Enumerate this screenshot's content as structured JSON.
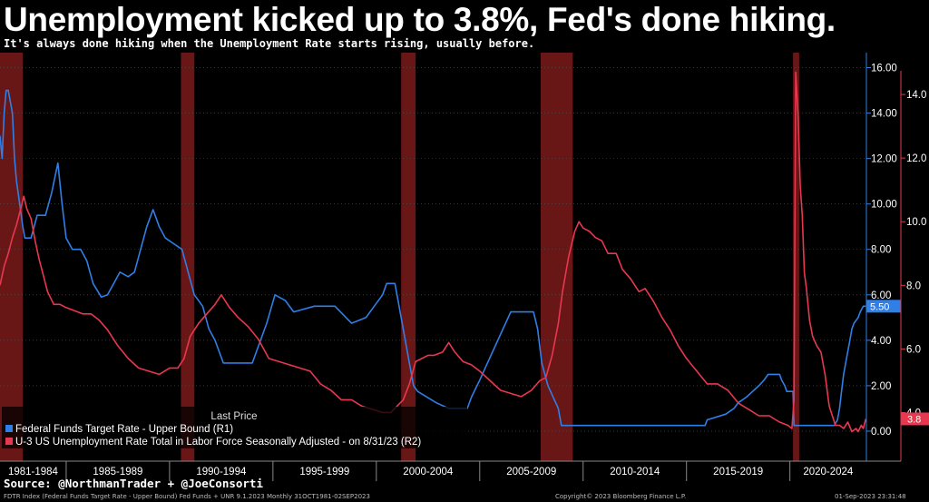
{
  "header": {
    "title": "Unemployment kicked up to 3.8%, Fed's done hiking.",
    "subtitle": "It's always done hiking when the Unemployment Rate starts rising, usually before."
  },
  "footer": {
    "source": "Source: @NorthmanTrader + @JoeConsorti",
    "index_line": "FDTR Index (Federal Funds Target Rate - Upper Bound) Fed Funds + UNR 9.1.2023  Monthly 31OCT1981-02SEP2023",
    "copyright": "Copyright© 2023 Bloomberg Finance L.P.",
    "timestamp": "01-Sep-2023 23:31:48"
  },
  "colors": {
    "fed_funds": "#2f7fe6",
    "unemployment": "#e8374f",
    "recession": "#7a1a1a",
    "background": "#000000"
  },
  "chart_data": {
    "type": "line",
    "x_range": [
      1981.8,
      2023.7
    ],
    "x_tick_labels": [
      "1981-1984",
      "1985-1989",
      "1990-1994",
      "1995-1999",
      "2000-2004",
      "2005-2009",
      "2010-2014",
      "2015-2019",
      "2020-2024"
    ],
    "y_right1": {
      "range": [
        -1.0,
        16.5
      ],
      "ticks": [
        "0.00",
        "2.00",
        "4.00",
        "6.00",
        "8.00",
        "10.00",
        "12.00",
        "14.00",
        "16.00"
      ],
      "last_value_label": "5.50"
    },
    "y_right2": {
      "range": [
        2.7,
        15.2
      ],
      "ticks": [
        "4.0",
        "6.0",
        "8.0",
        "10.0",
        "12.0",
        "14.0"
      ],
      "last_value_label": "3.8"
    },
    "recessions": [
      [
        1981.55,
        1982.9
      ],
      [
        1990.55,
        1991.2
      ],
      [
        2001.2,
        2001.9
      ],
      [
        2007.95,
        2009.5
      ],
      [
        2020.15,
        2020.45
      ]
    ],
    "legend": {
      "header": "Last Price",
      "entries": [
        {
          "label": "Federal Funds Target Rate - Upper Bound  (R1)",
          "series": "fed_funds"
        },
        {
          "label": "U-3 US Unemployment Rate Total in Labor Force Seasonally Adjusted -  on 8/31/23  (R2)",
          "series": "unemployment"
        }
      ]
    },
    "series": [
      {
        "key": "fed_funds",
        "axis": "R1",
        "points": [
          [
            1981.8,
            13.0
          ],
          [
            1981.9,
            12.0
          ],
          [
            1982.0,
            14.0
          ],
          [
            1982.1,
            15.0
          ],
          [
            1982.2,
            15.0
          ],
          [
            1982.3,
            14.5
          ],
          [
            1982.4,
            14.0
          ],
          [
            1982.5,
            12.0
          ],
          [
            1982.6,
            11.0
          ],
          [
            1982.75,
            10.0
          ],
          [
            1982.9,
            9.0
          ],
          [
            1983.0,
            8.5
          ],
          [
            1983.3,
            8.5
          ],
          [
            1983.6,
            9.5
          ],
          [
            1984.0,
            9.5
          ],
          [
            1984.3,
            10.5
          ],
          [
            1984.6,
            11.8
          ],
          [
            1984.8,
            10.0
          ],
          [
            1985.0,
            8.5
          ],
          [
            1985.3,
            8.0
          ],
          [
            1985.7,
            8.0
          ],
          [
            1986.0,
            7.5
          ],
          [
            1986.3,
            6.5
          ],
          [
            1986.7,
            5.9
          ],
          [
            1987.0,
            6.0
          ],
          [
            1987.3,
            6.5
          ],
          [
            1987.6,
            7.0
          ],
          [
            1988.0,
            6.8
          ],
          [
            1988.3,
            7.0
          ],
          [
            1988.6,
            8.0
          ],
          [
            1988.9,
            9.0
          ],
          [
            1989.2,
            9.75
          ],
          [
            1989.5,
            9.0
          ],
          [
            1989.8,
            8.5
          ],
          [
            1990.2,
            8.25
          ],
          [
            1990.6,
            8.0
          ],
          [
            1990.9,
            7.0
          ],
          [
            1991.2,
            6.0
          ],
          [
            1991.6,
            5.5
          ],
          [
            1991.9,
            4.5
          ],
          [
            1992.2,
            4.0
          ],
          [
            1992.6,
            3.0
          ],
          [
            1993.0,
            3.0
          ],
          [
            1993.5,
            3.0
          ],
          [
            1994.0,
            3.0
          ],
          [
            1994.3,
            3.75
          ],
          [
            1994.7,
            4.75
          ],
          [
            1995.1,
            6.0
          ],
          [
            1995.6,
            5.75
          ],
          [
            1996.0,
            5.25
          ],
          [
            1997.0,
            5.5
          ],
          [
            1998.0,
            5.5
          ],
          [
            1998.8,
            4.75
          ],
          [
            1999.5,
            5.0
          ],
          [
            1999.9,
            5.5
          ],
          [
            2000.3,
            6.0
          ],
          [
            2000.5,
            6.5
          ],
          [
            2000.9,
            6.5
          ],
          [
            2001.1,
            5.5
          ],
          [
            2001.4,
            4.0
          ],
          [
            2001.8,
            2.0
          ],
          [
            2002.0,
            1.75
          ],
          [
            2002.9,
            1.25
          ],
          [
            2003.5,
            1.0
          ],
          [
            2004.4,
            1.0
          ],
          [
            2004.6,
            1.5
          ],
          [
            2005.0,
            2.25
          ],
          [
            2005.5,
            3.25
          ],
          [
            2006.0,
            4.25
          ],
          [
            2006.5,
            5.25
          ],
          [
            2007.6,
            5.25
          ],
          [
            2007.8,
            4.5
          ],
          [
            2008.0,
            3.0
          ],
          [
            2008.3,
            2.0
          ],
          [
            2008.8,
            1.0
          ],
          [
            2008.95,
            0.25
          ],
          [
            2015.9,
            0.25
          ],
          [
            2016.0,
            0.5
          ],
          [
            2016.9,
            0.75
          ],
          [
            2017.3,
            1.0
          ],
          [
            2017.5,
            1.25
          ],
          [
            2017.9,
            1.5
          ],
          [
            2018.2,
            1.75
          ],
          [
            2018.5,
            2.0
          ],
          [
            2018.75,
            2.25
          ],
          [
            2018.95,
            2.5
          ],
          [
            2019.5,
            2.5
          ],
          [
            2019.6,
            2.25
          ],
          [
            2019.75,
            2.0
          ],
          [
            2019.85,
            1.75
          ],
          [
            2020.15,
            1.75
          ],
          [
            2020.2,
            0.25
          ],
          [
            2022.15,
            0.25
          ],
          [
            2022.3,
            0.5
          ],
          [
            2022.4,
            1.0
          ],
          [
            2022.5,
            1.75
          ],
          [
            2022.6,
            2.5
          ],
          [
            2022.75,
            3.25
          ],
          [
            2022.9,
            4.0
          ],
          [
            2023.0,
            4.5
          ],
          [
            2023.1,
            4.75
          ],
          [
            2023.3,
            5.0
          ],
          [
            2023.4,
            5.25
          ],
          [
            2023.55,
            5.5
          ],
          [
            2023.67,
            5.5
          ]
        ]
      },
      {
        "key": "unemployment",
        "axis": "R2",
        "points": [
          [
            1981.8,
            8.0
          ],
          [
            1981.9,
            8.3
          ],
          [
            1982.0,
            8.6
          ],
          [
            1982.2,
            9.0
          ],
          [
            1982.4,
            9.5
          ],
          [
            1982.6,
            9.9
          ],
          [
            1982.8,
            10.4
          ],
          [
            1982.95,
            10.8
          ],
          [
            1983.1,
            10.4
          ],
          [
            1983.3,
            10.1
          ],
          [
            1983.5,
            9.4
          ],
          [
            1983.7,
            8.8
          ],
          [
            1983.9,
            8.3
          ],
          [
            1984.1,
            7.8
          ],
          [
            1984.4,
            7.4
          ],
          [
            1984.7,
            7.4
          ],
          [
            1985.0,
            7.3
          ],
          [
            1985.4,
            7.2
          ],
          [
            1985.8,
            7.1
          ],
          [
            1986.2,
            7.1
          ],
          [
            1986.6,
            6.9
          ],
          [
            1987.0,
            6.6
          ],
          [
            1987.5,
            6.1
          ],
          [
            1988.0,
            5.7
          ],
          [
            1988.5,
            5.4
          ],
          [
            1989.0,
            5.3
          ],
          [
            1989.5,
            5.2
          ],
          [
            1990.0,
            5.4
          ],
          [
            1990.4,
            5.4
          ],
          [
            1990.7,
            5.7
          ],
          [
            1991.0,
            6.4
          ],
          [
            1991.4,
            6.8
          ],
          [
            1991.8,
            7.1
          ],
          [
            1992.2,
            7.4
          ],
          [
            1992.5,
            7.7
          ],
          [
            1992.9,
            7.3
          ],
          [
            1993.3,
            7.0
          ],
          [
            1993.8,
            6.7
          ],
          [
            1994.3,
            6.3
          ],
          [
            1994.8,
            5.7
          ],
          [
            1995.3,
            5.6
          ],
          [
            1995.8,
            5.5
          ],
          [
            1996.3,
            5.4
          ],
          [
            1996.8,
            5.3
          ],
          [
            1997.3,
            4.9
          ],
          [
            1997.8,
            4.7
          ],
          [
            1998.3,
            4.4
          ],
          [
            1998.8,
            4.4
          ],
          [
            1999.3,
            4.2
          ],
          [
            1999.8,
            4.1
          ],
          [
            2000.3,
            4.0
          ],
          [
            2000.7,
            4.0
          ],
          [
            2001.0,
            4.2
          ],
          [
            2001.3,
            4.4
          ],
          [
            2001.6,
            4.9
          ],
          [
            2001.9,
            5.6
          ],
          [
            2002.2,
            5.7
          ],
          [
            2002.5,
            5.8
          ],
          [
            2002.8,
            5.8
          ],
          [
            2003.2,
            5.9
          ],
          [
            2003.5,
            6.2
          ],
          [
            2003.8,
            5.9
          ],
          [
            2004.2,
            5.6
          ],
          [
            2004.6,
            5.5
          ],
          [
            2005.0,
            5.3
          ],
          [
            2005.5,
            5.0
          ],
          [
            2006.0,
            4.7
          ],
          [
            2006.5,
            4.6
          ],
          [
            2007.0,
            4.5
          ],
          [
            2007.5,
            4.7
          ],
          [
            2007.9,
            5.0
          ],
          [
            2008.2,
            5.1
          ],
          [
            2008.5,
            5.8
          ],
          [
            2008.8,
            6.8
          ],
          [
            2009.0,
            7.8
          ],
          [
            2009.3,
            8.9
          ],
          [
            2009.6,
            9.7
          ],
          [
            2009.8,
            10.0
          ],
          [
            2010.0,
            9.8
          ],
          [
            2010.3,
            9.7
          ],
          [
            2010.6,
            9.5
          ],
          [
            2010.9,
            9.4
          ],
          [
            2011.2,
            9.0
          ],
          [
            2011.6,
            9.0
          ],
          [
            2011.9,
            8.5
          ],
          [
            2012.3,
            8.2
          ],
          [
            2012.7,
            7.8
          ],
          [
            2013.0,
            7.9
          ],
          [
            2013.4,
            7.5
          ],
          [
            2013.8,
            7.0
          ],
          [
            2014.2,
            6.6
          ],
          [
            2014.6,
            6.1
          ],
          [
            2015.0,
            5.7
          ],
          [
            2015.5,
            5.3
          ],
          [
            2016.0,
            4.9
          ],
          [
            2016.5,
            4.9
          ],
          [
            2017.0,
            4.7
          ],
          [
            2017.5,
            4.3
          ],
          [
            2018.0,
            4.1
          ],
          [
            2018.5,
            3.9
          ],
          [
            2019.0,
            3.9
          ],
          [
            2019.5,
            3.7
          ],
          [
            2019.9,
            3.6
          ],
          [
            2020.1,
            3.5
          ],
          [
            2020.2,
            4.4
          ],
          [
            2020.28,
            14.7
          ],
          [
            2020.4,
            13.3
          ],
          [
            2020.5,
            11.1
          ],
          [
            2020.6,
            10.2
          ],
          [
            2020.7,
            8.4
          ],
          [
            2020.8,
            7.9
          ],
          [
            2020.95,
            6.9
          ],
          [
            2021.1,
            6.4
          ],
          [
            2021.3,
            6.1
          ],
          [
            2021.5,
            5.9
          ],
          [
            2021.7,
            5.2
          ],
          [
            2021.9,
            4.2
          ],
          [
            2022.0,
            4.0
          ],
          [
            2022.2,
            3.6
          ],
          [
            2022.4,
            3.6
          ],
          [
            2022.6,
            3.5
          ],
          [
            2022.8,
            3.7
          ],
          [
            2023.0,
            3.4
          ],
          [
            2023.2,
            3.5
          ],
          [
            2023.3,
            3.4
          ],
          [
            2023.45,
            3.6
          ],
          [
            2023.55,
            3.5
          ],
          [
            2023.67,
            3.8
          ]
        ]
      }
    ]
  }
}
